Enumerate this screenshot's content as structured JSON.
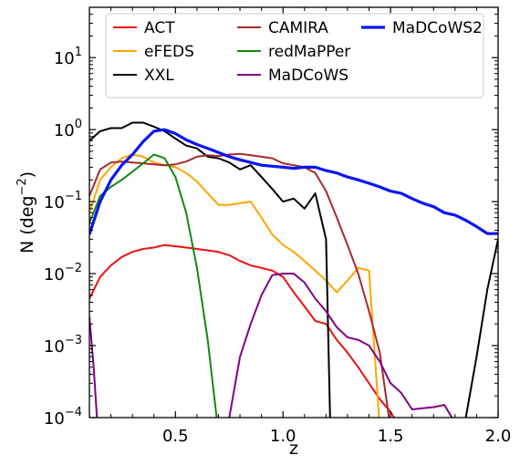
{
  "chart_data": {
    "type": "line",
    "title": "",
    "xlabel": "z",
    "ylabel_main": "N (deg",
    "ylabel_sup": "−2",
    "ylabel_close": ")",
    "yscale": "log",
    "xlim": [
      0.1,
      2.0
    ],
    "ylim": [
      0.0001,
      50
    ],
    "x_ticks": [
      0.5,
      1.0,
      1.5,
      2.0
    ],
    "x_tick_labels": [
      "0.5",
      "1.0",
      "1.5",
      "2.0"
    ],
    "y_ticks": [
      {
        "value": 0.0001,
        "base": "10",
        "exp": "−4"
      },
      {
        "value": 0.001,
        "base": "10",
        "exp": "−3"
      },
      {
        "value": 0.01,
        "base": "10",
        "exp": "−2"
      },
      {
        "value": 0.1,
        "base": "10",
        "exp": "−1"
      },
      {
        "value": 1,
        "base": "10",
        "exp": "0"
      },
      {
        "value": 10,
        "base": "10",
        "exp": "1"
      }
    ],
    "grid": false,
    "legend_position": "top",
    "series": [
      {
        "name": "ACT",
        "color": "#ee1111",
        "x": [
          0.1,
          0.15,
          0.2,
          0.25,
          0.3,
          0.35,
          0.4,
          0.45,
          0.5,
          0.55,
          0.6,
          0.65,
          0.7,
          0.75,
          0.8,
          0.85,
          0.9,
          0.95,
          1.0,
          1.05,
          1.1,
          1.15,
          1.2,
          1.25,
          1.3,
          1.35,
          1.4,
          1.45,
          1.5,
          1.55
        ],
        "y": [
          0.0045,
          0.009,
          0.013,
          0.017,
          0.02,
          0.022,
          0.023,
          0.025,
          0.024,
          0.023,
          0.022,
          0.021,
          0.02,
          0.018,
          0.015,
          0.013,
          0.012,
          0.011,
          0.009,
          0.0055,
          0.0035,
          0.0022,
          0.002,
          0.0012,
          0.0008,
          0.0005,
          0.0003,
          0.00018,
          0.00012,
          7e-05
        ]
      },
      {
        "name": "eFEDS",
        "color": "#ffa500",
        "x": [
          0.1,
          0.15,
          0.2,
          0.25,
          0.3,
          0.35,
          0.4,
          0.45,
          0.5,
          0.55,
          0.6,
          0.65,
          0.7,
          0.75,
          0.8,
          0.85,
          0.9,
          0.95,
          1.0,
          1.05,
          1.1,
          1.15,
          1.2,
          1.25,
          1.3,
          1.35,
          1.4,
          1.45
        ],
        "y": [
          0.07,
          0.2,
          0.3,
          0.4,
          0.45,
          0.42,
          0.35,
          0.32,
          0.3,
          0.25,
          0.19,
          0.13,
          0.09,
          0.09,
          0.095,
          0.1,
          0.06,
          0.035,
          0.025,
          0.02,
          0.015,
          0.011,
          0.008,
          0.0055,
          0.008,
          0.012,
          0.011,
          7e-05
        ]
      },
      {
        "name": "XXL",
        "color": "#000000",
        "x": [
          0.1,
          0.15,
          0.2,
          0.25,
          0.3,
          0.35,
          0.4,
          0.45,
          0.5,
          0.55,
          0.6,
          0.65,
          0.7,
          0.75,
          0.8,
          0.85,
          0.9,
          0.95,
          1.0,
          1.05,
          1.1,
          1.15,
          1.2,
          1.22,
          1.8,
          1.85,
          1.9,
          1.95,
          2.0
        ],
        "y": [
          0.7,
          0.95,
          1.05,
          1.05,
          1.25,
          1.25,
          1.1,
          0.95,
          0.75,
          0.6,
          0.55,
          0.42,
          0.4,
          0.35,
          0.28,
          0.32,
          0.22,
          0.15,
          0.1,
          0.11,
          0.08,
          0.13,
          0.03,
          7e-05,
          7e-05,
          0.0001,
          0.0007,
          0.006,
          0.03
        ]
      },
      {
        "name": "CAMIRA",
        "color": "#a52a2a",
        "x": [
          0.1,
          0.15,
          0.2,
          0.25,
          0.3,
          0.35,
          0.4,
          0.45,
          0.5,
          0.55,
          0.6,
          0.65,
          0.7,
          0.75,
          0.8,
          0.85,
          0.9,
          0.95,
          1.0,
          1.05,
          1.1,
          1.15,
          1.2,
          1.25,
          1.3,
          1.35,
          1.4,
          1.45,
          1.5
        ],
        "y": [
          0.12,
          0.28,
          0.35,
          0.36,
          0.35,
          0.34,
          0.33,
          0.32,
          0.33,
          0.36,
          0.42,
          0.44,
          0.43,
          0.45,
          0.46,
          0.44,
          0.42,
          0.4,
          0.34,
          0.32,
          0.3,
          0.25,
          0.14,
          0.06,
          0.025,
          0.01,
          0.003,
          0.0008,
          7e-05
        ]
      },
      {
        "name": "redMaPPer",
        "color": "#138813",
        "x": [
          0.1,
          0.15,
          0.2,
          0.25,
          0.3,
          0.35,
          0.4,
          0.45,
          0.5,
          0.55,
          0.6,
          0.65,
          0.7
        ],
        "y": [
          0.05,
          0.12,
          0.16,
          0.2,
          0.26,
          0.34,
          0.45,
          0.4,
          0.22,
          0.07,
          0.012,
          0.0012,
          6e-05
        ]
      },
      {
        "name": "MaDCoWS",
        "color": "#800080",
        "x": [
          0.1,
          0.12,
          0.14,
          0.7,
          0.75,
          0.8,
          0.85,
          0.9,
          0.95,
          1.0,
          1.05,
          1.1,
          1.15,
          1.2,
          1.25,
          1.3,
          1.35,
          1.4,
          1.45,
          1.5,
          1.55,
          1.6,
          1.65,
          1.7,
          1.75,
          1.8
        ],
        "y": [
          0.0025,
          0.0005,
          6e-05,
          6e-05,
          0.0001,
          0.0007,
          0.002,
          0.005,
          0.0095,
          0.01,
          0.01,
          0.0075,
          0.0045,
          0.003,
          0.0018,
          0.0013,
          0.0012,
          0.001,
          0.0006,
          0.0003,
          0.00022,
          0.00013,
          0.000135,
          0.00014,
          0.00015,
          8.5e-05
        ]
      },
      {
        "name": "MaDCoWS2",
        "color": "#0a16f0",
        "x": [
          0.1,
          0.15,
          0.2,
          0.25,
          0.3,
          0.35,
          0.4,
          0.45,
          0.5,
          0.55,
          0.6,
          0.65,
          0.7,
          0.75,
          0.8,
          0.85,
          0.9,
          0.95,
          1.0,
          1.05,
          1.1,
          1.15,
          1.2,
          1.25,
          1.3,
          1.35,
          1.4,
          1.45,
          1.5,
          1.55,
          1.6,
          1.65,
          1.7,
          1.75,
          1.8,
          1.85,
          1.9,
          1.95,
          2.0
        ],
        "y": [
          0.035,
          0.1,
          0.2,
          0.32,
          0.45,
          0.68,
          0.95,
          1.0,
          0.88,
          0.72,
          0.62,
          0.55,
          0.48,
          0.42,
          0.38,
          0.35,
          0.32,
          0.31,
          0.3,
          0.29,
          0.3,
          0.3,
          0.27,
          0.25,
          0.22,
          0.2,
          0.18,
          0.16,
          0.14,
          0.13,
          0.11,
          0.095,
          0.085,
          0.07,
          0.065,
          0.055,
          0.045,
          0.036,
          0.036
        ]
      }
    ]
  }
}
